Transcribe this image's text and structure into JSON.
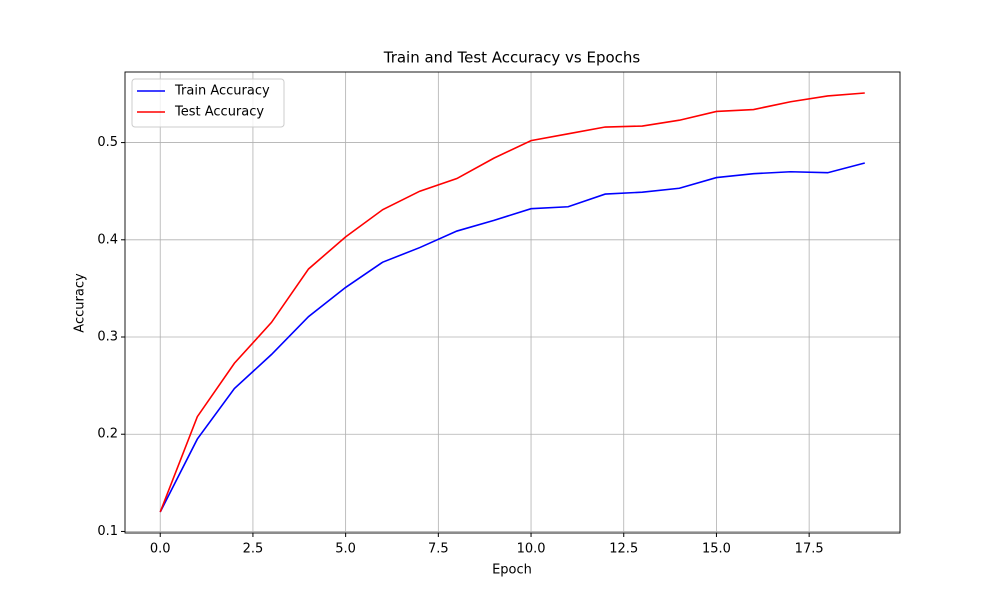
{
  "chart_data": {
    "type": "line",
    "title": "Train and Test Accuracy vs Epochs",
    "x_label": "Epoch",
    "y_label": "Accuracy",
    "x": [
      0,
      1,
      2,
      3,
      4,
      5,
      6,
      7,
      8,
      9,
      10,
      11,
      12,
      13,
      14,
      15,
      16,
      17,
      18,
      19
    ],
    "series": [
      {
        "name": "Train Accuracy",
        "color": "#0000ff",
        "values": [
          0.12,
          0.195,
          0.247,
          0.282,
          0.321,
          0.351,
          0.377,
          0.392,
          0.409,
          0.42,
          0.432,
          0.434,
          0.447,
          0.449,
          0.453,
          0.464,
          0.468,
          0.47,
          0.469,
          0.479
        ]
      },
      {
        "name": "Test Accuracy",
        "color": "#ff0000",
        "values": [
          0.12,
          0.218,
          0.273,
          0.315,
          0.37,
          0.403,
          0.431,
          0.45,
          0.463,
          0.484,
          0.502,
          0.509,
          0.516,
          0.517,
          0.523,
          0.532,
          0.534,
          0.542,
          0.548,
          0.551
        ]
      }
    ],
    "xlim": [
      -0.95,
      19.95
    ],
    "xticks": [
      {
        "value": 0,
        "label": "0.0"
      },
      2.5,
      {
        "value": 5,
        "label": "5.0"
      },
      7.5,
      {
        "value": 10,
        "label": "10.0"
      },
      12.5,
      {
        "value": 15,
        "label": "15.0"
      },
      17.5
    ],
    "ylim": [
      0.0984,
      0.5726
    ],
    "yticks": [
      0.1,
      0.2,
      0.3,
      0.4,
      0.5
    ],
    "grid": true,
    "legend": "upper-left"
  }
}
